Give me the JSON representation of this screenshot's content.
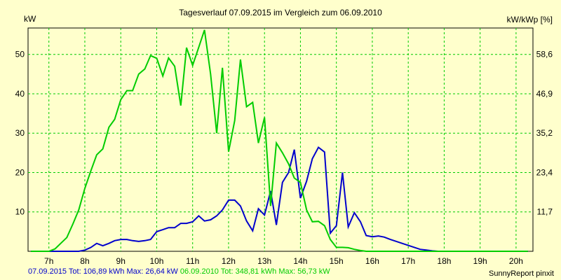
{
  "chart_data": {
    "type": "line",
    "title": "Tagesverlauf 07.09.2015 im Vergleich zum 06.09.2010",
    "ylabel": "kW",
    "ylabel_right": "kW/kWp [%]",
    "xlabel": "",
    "xlim": [
      6.42,
      20.47
    ],
    "ylim": [
      0,
      56.7
    ],
    "x_ticks": [
      "7h",
      "8h",
      "9h",
      "10h",
      "11h",
      "12h",
      "13h",
      "14h",
      "15h",
      "16h",
      "17h",
      "18h",
      "19h",
      "20h"
    ],
    "x_tick_values": [
      7,
      8,
      9,
      10,
      11,
      12,
      13,
      14,
      15,
      16,
      17,
      18,
      19,
      20
    ],
    "y_ticks_left": [
      "10",
      "20",
      "30",
      "40",
      "50"
    ],
    "y_tick_values_left": [
      10,
      20,
      30,
      40,
      50
    ],
    "y_ticks_right": [
      "11,7",
      "23,4",
      "35,2",
      "46,9",
      "58,6"
    ],
    "y_tick_values_right": [
      10,
      20,
      30,
      40,
      50
    ],
    "grid": true,
    "series": [
      {
        "color": "#0000cc",
        "x": [
          6.5,
          7.0,
          7.5,
          7.83,
          8.0,
          8.17,
          8.33,
          8.5,
          8.67,
          8.83,
          9.0,
          9.17,
          9.33,
          9.5,
          9.67,
          9.83,
          10.0,
          10.17,
          10.33,
          10.5,
          10.67,
          10.83,
          11.0,
          11.17,
          11.33,
          11.5,
          11.67,
          11.83,
          12.0,
          12.17,
          12.33,
          12.5,
          12.67,
          12.83,
          13.0,
          13.17,
          13.33,
          13.5,
          13.67,
          13.83,
          14.0,
          14.17,
          14.33,
          14.5,
          14.67,
          14.83,
          15.0,
          15.17,
          15.33,
          15.5,
          15.67,
          15.83,
          16.0,
          16.17,
          16.33,
          16.5,
          16.67,
          16.83,
          17.0,
          17.17,
          17.33,
          17.5,
          17.67,
          17.83,
          18.0,
          18.17,
          18.33,
          18.5,
          18.67,
          18.83,
          19.0,
          19.17,
          19.33,
          19.5,
          19.67,
          19.83,
          20.0,
          20.17,
          20.33
        ],
        "values": [
          0,
          0,
          0,
          0,
          0.3,
          1,
          2,
          1.4,
          2,
          2.7,
          3,
          3,
          2.7,
          2.5,
          2.7,
          3,
          5,
          5.5,
          6,
          6,
          7.1,
          7.1,
          7.5,
          9,
          7.7,
          8,
          9,
          10.5,
          13,
          13,
          11.5,
          7.7,
          5.2,
          10.8,
          9.2,
          15.3,
          6.7,
          17.5,
          20,
          25.8,
          13.5,
          17.8,
          23.5,
          26.4,
          25.2,
          4.6,
          6.5,
          20,
          6.2,
          9.8,
          7.5,
          4,
          3.7,
          3.9,
          3.6,
          3,
          2.5,
          2,
          1.5,
          1,
          0.5,
          0.3,
          0.1,
          0,
          0,
          0,
          0,
          0,
          0,
          0,
          0,
          0,
          0,
          0,
          0,
          0,
          0,
          0,
          0
        ]
      },
      {
        "color": "#00cc00",
        "x": [
          6.5,
          7.0,
          7.17,
          7.33,
          7.5,
          7.67,
          7.83,
          8.0,
          8.17,
          8.33,
          8.5,
          8.67,
          8.83,
          9.0,
          9.17,
          9.33,
          9.5,
          9.67,
          9.83,
          10.0,
          10.17,
          10.33,
          10.5,
          10.67,
          10.83,
          11.0,
          11.17,
          11.33,
          11.5,
          11.67,
          11.83,
          12.0,
          12.17,
          12.33,
          12.5,
          12.67,
          12.83,
          13.0,
          13.17,
          13.33,
          13.5,
          13.67,
          13.83,
          14.0,
          14.17,
          14.33,
          14.5,
          14.67,
          14.83,
          15.0,
          15.17,
          15.33,
          15.5,
          15.67,
          15.83,
          16.0,
          16.17,
          16.33,
          16.5,
          16.67,
          16.83,
          17.0,
          17.17,
          17.33,
          17.5,
          17.67,
          17.83,
          18.0,
          18.17,
          18.33,
          18.5,
          18.67,
          18.83,
          19.0,
          19.17,
          19.33,
          19.5,
          19.67,
          19.83,
          20.0,
          20.17,
          20.33
        ],
        "values": [
          0,
          0,
          0.6,
          2,
          3.5,
          7,
          10.5,
          16,
          20.5,
          24.5,
          26,
          31.5,
          33.5,
          38.5,
          40.8,
          40.8,
          45,
          46.3,
          49.7,
          49,
          44.5,
          49.1,
          47,
          37,
          51.7,
          47.2,
          51.8,
          56.2,
          45,
          30,
          46.6,
          25.3,
          33.2,
          48.7,
          36.7,
          37.8,
          27.5,
          34,
          11.5,
          27.5,
          25,
          22.2,
          18.6,
          17.5,
          10.5,
          7.5,
          7.6,
          6.5,
          3,
          1,
          1,
          0.9,
          0.5,
          0.2,
          0,
          0,
          0,
          0,
          0,
          0,
          0,
          0,
          0,
          0,
          0,
          0,
          0,
          0,
          0,
          0,
          0,
          0,
          0,
          0,
          0,
          0,
          0,
          0,
          0,
          0,
          0,
          0
        ]
      }
    ]
  },
  "texts": {
    "title": "Tagesverlauf 07.09.2015 im Vergleich zum 06.09.2010",
    "ylabel_left": "kW",
    "ylabel_right": "kW/kWp [%]",
    "footer_blue": "07.09.2015 Tot: 106,89 kWh Max: 26,64 kW",
    "footer_green": "06.09.2010 Tot: 348,81 kWh Max: 56,73 kW",
    "credit": "SunnyReport pinxit"
  }
}
